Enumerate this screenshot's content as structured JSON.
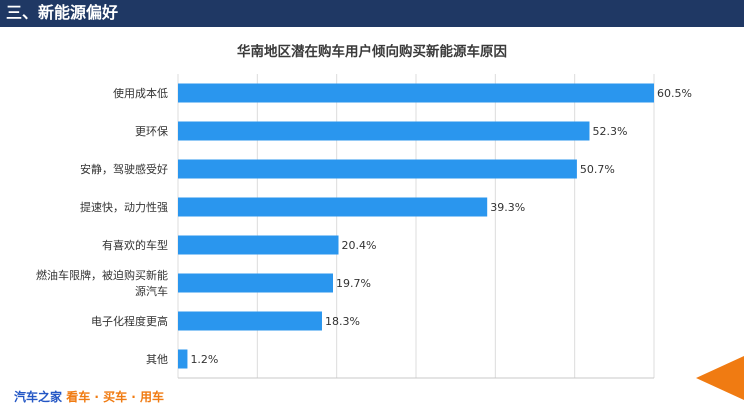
{
  "header": {
    "title": "三、新能源偏好"
  },
  "footer": {
    "brand_name": "汽车之家",
    "brand_slogan": " 看车 · 买车 · 用车"
  },
  "colors": {
    "header_bg": "#1f3864",
    "bar": "#2a96ee",
    "accent": "#f07b12",
    "brand": "#2457c5"
  },
  "chart_data": {
    "type": "bar",
    "orientation": "horizontal",
    "title": "华南地区潜在购车用户倾向购买新能源车原因",
    "categories": [
      "使用成本低",
      "更环保",
      "安静，驾驶感受好",
      "提速快，动力性强",
      "有喜欢的车型",
      "燃油车限牌，被迫购买新能源汽车",
      "电子化程度更高",
      "其他"
    ],
    "category_lines": [
      [
        "使用成本低"
      ],
      [
        "更环保"
      ],
      [
        "安静，驾驶感受好"
      ],
      [
        "提速快，动力性强"
      ],
      [
        "有喜欢的车型"
      ],
      [
        "燃油车限牌，被迫购买新能",
        "源汽车"
      ],
      [
        "电子化程度更高"
      ],
      [
        "其他"
      ]
    ],
    "values": [
      60.5,
      52.3,
      50.7,
      39.3,
      20.4,
      19.7,
      18.3,
      1.2
    ],
    "data_labels": [
      "60.5%",
      "52.3%",
      "50.7%",
      "39.3%",
      "20.4%",
      "19.7%",
      "18.3%",
      "1.2%"
    ],
    "xlim": [
      0,
      60.5
    ],
    "unit": "%",
    "grid": true
  }
}
